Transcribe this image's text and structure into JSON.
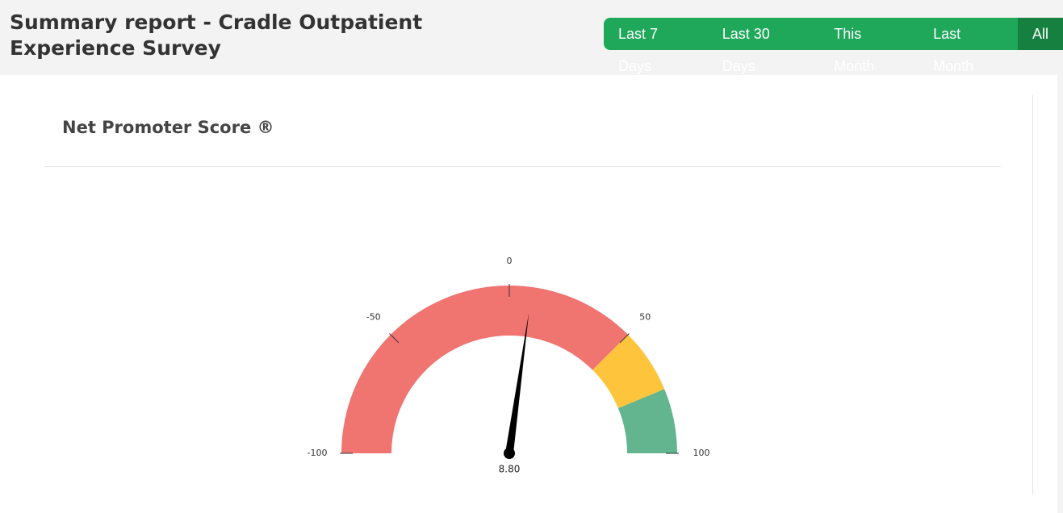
{
  "header": {
    "title": "Summary report - Cradle Outpatient Experience Survey",
    "filters": [
      "Last 7 Days",
      "Last 30 Days",
      "This Month",
      "Last Month",
      "All"
    ],
    "selected": 4
  },
  "card": {
    "title": "Net Promoter Score ®"
  },
  "chart_data": {
    "type": "gauge",
    "min": -100,
    "max": 100,
    "ticks": [
      -100,
      -50,
      0,
      50,
      100
    ],
    "bands": [
      {
        "from": -100,
        "to": 50,
        "color": "#f07470"
      },
      {
        "from": 50,
        "to": 75,
        "color": "#fec43b"
      },
      {
        "from": 75,
        "to": 100,
        "color": "#62b58f"
      }
    ],
    "values": [
      8.8
    ],
    "value_labels": [
      "8.80"
    ],
    "needle_color": "#000000"
  }
}
